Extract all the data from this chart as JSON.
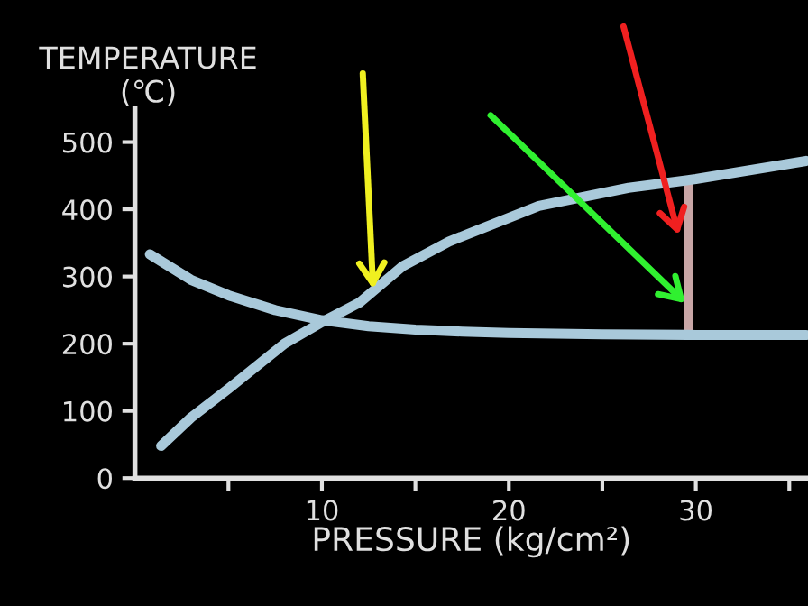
{
  "chart_data": {
    "type": "line",
    "ylabel": "TEMPERATURE\n(℃)",
    "xlabel": "PRESSURE (kg/cm²)",
    "series": [
      {
        "color": "#a9c9da",
        "x": [
          1.4,
          3,
          5,
          8,
          10,
          12,
          14.3,
          16.8,
          21.6,
          26.4,
          30,
          35.9
        ],
        "values": [
          48,
          90,
          133,
          200,
          232,
          261,
          315,
          352,
          405,
          432,
          445,
          472
        ]
      },
      {
        "color": "#a9c9da",
        "x": [
          0.8,
          3,
          5,
          7.5,
          10,
          12.5,
          15,
          17.5,
          20,
          25,
          30,
          35.9
        ],
        "values": [
          333,
          295,
          272,
          250,
          235,
          226,
          221,
          218,
          216,
          214,
          213,
          213
        ]
      },
      {
        "type": "bar",
        "color": "#c8a6a6",
        "x": [
          29.6
        ],
        "base": [
          213
        ],
        "values": [
          232
        ]
      }
    ],
    "xlim": [
      0,
      36
    ],
    "ylim": [
      0,
      550
    ],
    "xticks": [
      {
        "value": 5,
        "label": null
      },
      10,
      {
        "value": 15,
        "label": null
      },
      20,
      {
        "value": 25,
        "label": null
      },
      30,
      {
        "value": 35,
        "label": null
      }
    ],
    "yticks": [
      0,
      100,
      200,
      300,
      400,
      500
    ],
    "grid": false,
    "legend": false
  }
}
